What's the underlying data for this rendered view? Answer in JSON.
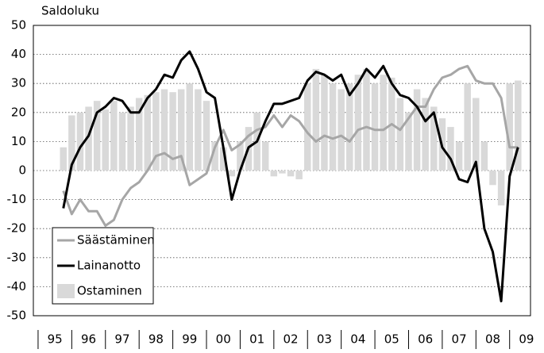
{
  "chart_data": {
    "type": "line",
    "y_label": "Saldoluku",
    "x": [
      1995.75,
      1996,
      1996.25,
      1996.5,
      1996.75,
      1997,
      1997.25,
      1997.5,
      1997.75,
      1998,
      1998.25,
      1998.5,
      1998.75,
      1999,
      1999.25,
      1999.5,
      1999.75,
      2000,
      2000.25,
      2000.5,
      2000.75,
      2001,
      2001.25,
      2001.5,
      2001.75,
      2002,
      2002.25,
      2002.5,
      2002.75,
      2003,
      2003.25,
      2003.5,
      2003.75,
      2004,
      2004.25,
      2004.5,
      2004.75,
      2005,
      2005.25,
      2005.5,
      2005.75,
      2006,
      2006.25,
      2006.5,
      2006.75,
      2007,
      2007.25,
      2007.5,
      2007.75,
      2008,
      2008.25,
      2008.5,
      2008.75,
      2009,
      2009.25
    ],
    "series": [
      {
        "name": "Säästäminen",
        "type": "line",
        "color": "#a6a6a6",
        "values": [
          -7,
          -15,
          -10,
          -14,
          -14,
          -19,
          -17,
          -10,
          -6,
          -4,
          0,
          5,
          6,
          4,
          5,
          -5,
          -3,
          -1,
          8,
          14,
          7,
          9,
          12,
          14,
          15,
          19,
          15,
          19,
          17,
          13,
          10,
          12,
          11,
          12,
          10,
          14,
          15,
          14,
          14,
          16,
          14,
          18,
          22,
          22,
          28,
          32,
          33,
          35,
          36,
          31,
          30,
          30,
          25,
          8,
          8
        ]
      },
      {
        "name": "Lainanotto",
        "type": "line",
        "color": "#000000",
        "values": [
          -13,
          2,
          8,
          12,
          20,
          22,
          25,
          24,
          20,
          20,
          25,
          28,
          33,
          32,
          38,
          41,
          35,
          27,
          25,
          8,
          -10,
          0,
          8,
          10,
          17,
          23,
          23,
          24,
          25,
          31,
          34,
          33,
          31,
          33,
          26,
          30,
          35,
          32,
          36,
          30,
          26,
          25,
          22,
          17,
          20,
          8,
          4,
          -3,
          -4,
          3,
          -20,
          -28,
          -45,
          -2,
          8
        ]
      },
      {
        "name": "Ostaminen",
        "type": "bar",
        "color": "#d9d9d9",
        "values": [
          8,
          19,
          20,
          22,
          24,
          21,
          24,
          20,
          22,
          25,
          26,
          27,
          28,
          27,
          28,
          30,
          28,
          24,
          10,
          8,
          -2,
          10,
          15,
          20,
          10,
          -2,
          -1,
          -2,
          -3,
          30,
          35,
          33,
          30,
          28,
          30,
          33,
          35,
          30,
          33,
          32,
          25,
          20,
          28,
          25,
          22,
          18,
          15,
          10,
          30,
          25,
          10,
          -5,
          -12,
          30,
          31
        ]
      }
    ],
    "xlim": [
      1994.86,
      2009.62
    ],
    "xticks": [
      {
        "value": 1995.5,
        "label": "95"
      },
      {
        "value": 1996.5,
        "label": "96"
      },
      {
        "value": 1997.5,
        "label": "97"
      },
      {
        "value": 1998.5,
        "label": "98"
      },
      {
        "value": 1999.5,
        "label": "99"
      },
      {
        "value": 2000.5,
        "label": "00"
      },
      {
        "value": 2001.5,
        "label": "01"
      },
      {
        "value": 2002.5,
        "label": "02"
      },
      {
        "value": 2003.5,
        "label": "03"
      },
      {
        "value": 2004.5,
        "label": "04"
      },
      {
        "value": 2005.5,
        "label": "05"
      },
      {
        "value": 2006.5,
        "label": "06"
      },
      {
        "value": 2007.5,
        "label": "07"
      },
      {
        "value": 2008.5,
        "label": "08"
      },
      {
        "value": 2009.5,
        "label": "09"
      }
    ],
    "ylim": [
      -50,
      50
    ],
    "yticks": [
      -50,
      -40,
      -30,
      -20,
      -10,
      0,
      10,
      20,
      30,
      40,
      50
    ],
    "grid": true,
    "legend": "lower left"
  }
}
